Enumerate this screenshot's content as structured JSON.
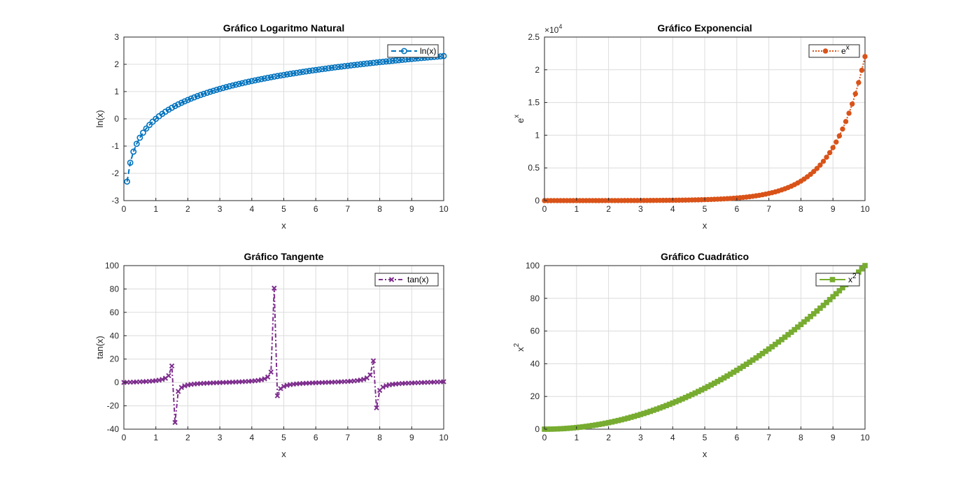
{
  "figure": {
    "background": "#ffffff"
  },
  "chart_data": [
    {
      "id": "ln",
      "type": "line",
      "title": "Gráfico Logaritmo Natural",
      "xlabel": "x",
      "ylabel": "ln(x)",
      "xlim": [
        0,
        10
      ],
      "ylim": [
        -3,
        3
      ],
      "xticks": [
        "0",
        "1",
        "2",
        "3",
        "4",
        "5",
        "6",
        "7",
        "8",
        "9",
        "10"
      ],
      "yticks": [
        "-3",
        "-2",
        "-1",
        "0",
        "1",
        "2",
        "3"
      ],
      "grid": true,
      "legend_position": "top-right",
      "series": [
        {
          "name": "ln(x)",
          "color": "#0072BD",
          "line_style": "dashed",
          "marker": "circle",
          "x_range": [
            0.1,
            10
          ],
          "x_step": 0.1,
          "expression": "ln(x)",
          "sample_points": [
            [
              0.1,
              -2.3
            ],
            [
              0.2,
              -1.61
            ],
            [
              0.5,
              -0.69
            ],
            [
              1,
              0
            ],
            [
              2,
              0.69
            ],
            [
              3,
              1.1
            ],
            [
              5,
              1.61
            ],
            [
              7,
              1.95
            ],
            [
              10,
              2.3
            ]
          ]
        }
      ]
    },
    {
      "id": "exp",
      "type": "line",
      "title": "Gráfico Exponencial",
      "xlabel": "x",
      "ylabel": "e^x",
      "exponent_label": "×10^4",
      "xlim": [
        0,
        10
      ],
      "ylim": [
        0,
        2.5
      ],
      "xticks": [
        "0",
        "1",
        "2",
        "3",
        "4",
        "5",
        "6",
        "7",
        "8",
        "9",
        "10"
      ],
      "yticks": [
        "0",
        "0.5",
        "1",
        "1.5",
        "2",
        "2.5"
      ],
      "grid": true,
      "legend_position": "top-right",
      "series": [
        {
          "name": "e^x",
          "color": "#D95319",
          "line_style": "dotted",
          "marker": "filled-circle",
          "x_range": [
            0,
            10
          ],
          "x_step": 0.1,
          "expression": "exp(x) / 10^4",
          "sample_points": [
            [
              0,
              0.0001
            ],
            [
              5,
              0.0148
            ],
            [
              7,
              0.1097
            ],
            [
              8,
              0.2981
            ],
            [
              9,
              0.8103
            ],
            [
              9.5,
              1.336
            ],
            [
              10,
              2.2026
            ]
          ]
        }
      ]
    },
    {
      "id": "tan",
      "type": "line",
      "title": "Gráfico Tangente",
      "xlabel": "x",
      "ylabel": "tan(x)",
      "xlim": [
        0,
        10
      ],
      "ylim": [
        -40,
        100
      ],
      "xticks": [
        "0",
        "1",
        "2",
        "3",
        "4",
        "5",
        "6",
        "7",
        "8",
        "9",
        "10"
      ],
      "yticks": [
        "-40",
        "-20",
        "0",
        "20",
        "40",
        "60",
        "80",
        "100"
      ],
      "grid": true,
      "legend_position": "top-right",
      "series": [
        {
          "name": "tan(x)",
          "color": "#7E2F8E",
          "line_style": "dash-dot",
          "marker": "x",
          "x_range": [
            0,
            10
          ],
          "x_step": 0.1,
          "expression": "tan(x)",
          "sample_points": [
            [
              1.5,
              14.1
            ],
            [
              1.6,
              -34.23
            ],
            [
              4.6,
              8.86
            ],
            [
              4.7,
              80.71
            ],
            [
              4.8,
              -11.38
            ],
            [
              7.8,
              18.68
            ],
            [
              7.9,
              -21.94
            ],
            [
              10,
              0.65
            ]
          ]
        }
      ]
    },
    {
      "id": "quad",
      "type": "line",
      "title": "Gráfico Cuadrático",
      "xlabel": "x",
      "ylabel": "x^2",
      "xlim": [
        0,
        10
      ],
      "ylim": [
        0,
        100
      ],
      "xticks": [
        "0",
        "1",
        "2",
        "3",
        "4",
        "5",
        "6",
        "7",
        "8",
        "9",
        "10"
      ],
      "yticks": [
        "0",
        "20",
        "40",
        "60",
        "80",
        "100"
      ],
      "grid": true,
      "legend_position": "top-right",
      "series": [
        {
          "name": "x^2",
          "color": "#77AC30",
          "line_style": "solid",
          "marker": "square",
          "x_range": [
            0,
            10
          ],
          "x_step": 0.1,
          "expression": "x^2",
          "sample_points": [
            [
              0,
              0
            ],
            [
              2,
              4
            ],
            [
              4,
              16
            ],
            [
              6,
              36
            ],
            [
              8,
              64
            ],
            [
              10,
              100
            ]
          ]
        }
      ]
    }
  ]
}
